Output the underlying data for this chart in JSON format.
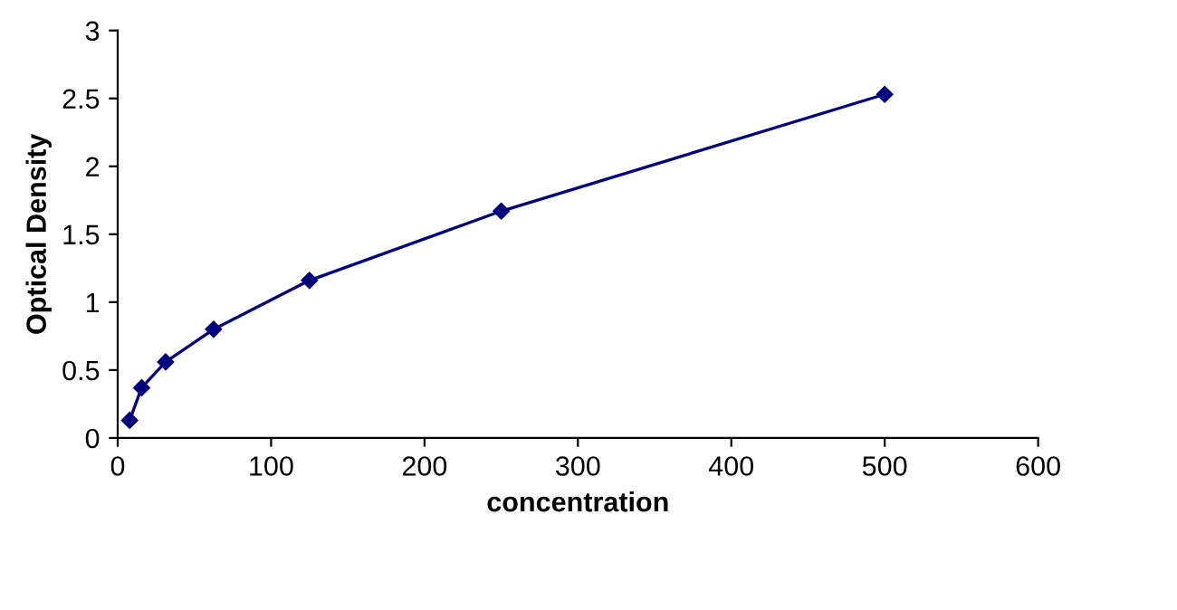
{
  "chart_data": {
    "type": "line",
    "xlabel": "concentration",
    "ylabel": "Optical Density",
    "x": [
      7.8,
      15.6,
      31.25,
      62.5,
      125,
      250,
      500
    ],
    "series": [
      {
        "color": "#00007f",
        "values": [
          0.13,
          0.37,
          0.56,
          0.8,
          1.16,
          1.67,
          2.53
        ]
      }
    ],
    "xlim": [
      0,
      600
    ],
    "xticks": [
      0,
      100,
      200,
      300,
      400,
      500,
      600
    ],
    "ylim": [
      0,
      3
    ],
    "yticks": [
      0,
      0.5,
      1,
      1.5,
      2,
      2.5,
      3
    ],
    "marker": "diamond",
    "line_style": "solid",
    "grid": false,
    "legend": false
  }
}
